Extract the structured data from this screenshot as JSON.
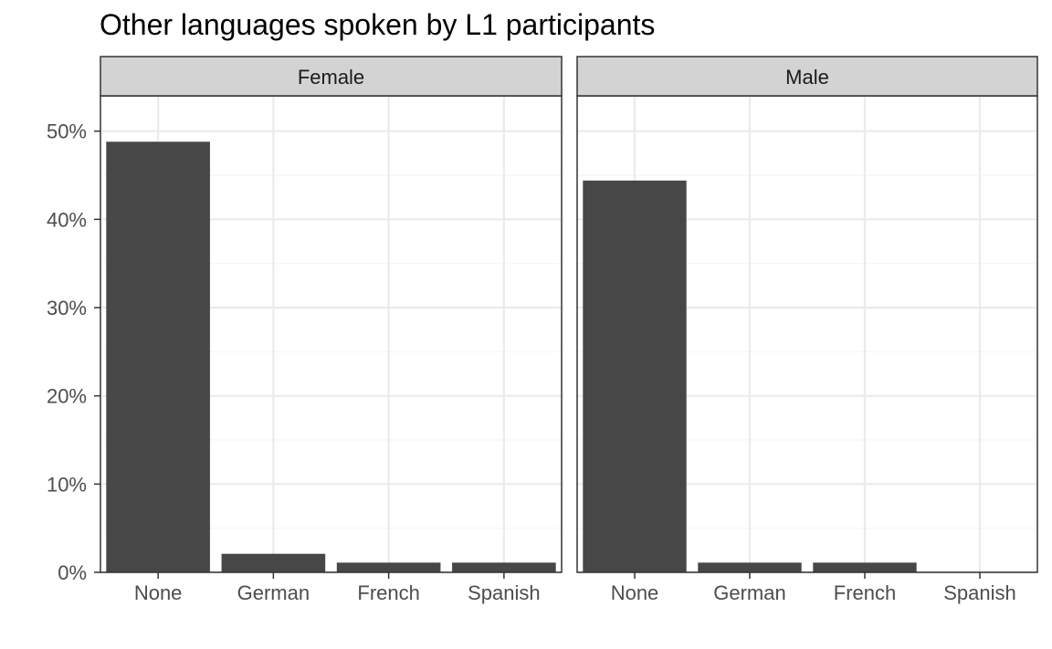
{
  "chart_data": {
    "type": "bar",
    "title": "Other languages spoken by L1 participants",
    "xlabel": "",
    "ylabel": "",
    "categories": [
      "None",
      "German",
      "French",
      "Spanish"
    ],
    "ylim": [
      0,
      0.54
    ],
    "y_ticks": [
      0,
      0.1,
      0.2,
      0.3,
      0.4,
      0.5
    ],
    "y_tick_labels": [
      "0%",
      "10%",
      "20%",
      "30%",
      "40%",
      "50%"
    ],
    "grid": true,
    "facets": [
      {
        "label": "Female",
        "values": [
          0.488,
          0.021,
          0.011,
          0.011
        ]
      },
      {
        "label": "Male",
        "values": [
          0.444,
          0.011,
          0.011,
          0.0
        ]
      }
    ],
    "colors": {
      "bar": "#474747",
      "strip_fill": "#d3d3d3",
      "panel_border": "#333333",
      "grid_major": "#ebebeb",
      "grid_minor": "#f5f5f5"
    }
  }
}
